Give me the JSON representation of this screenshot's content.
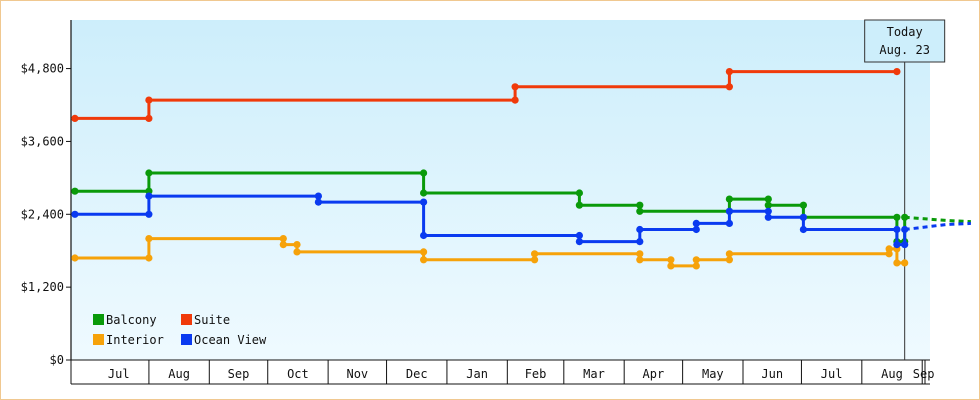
{
  "chart_data": {
    "type": "line",
    "step": true,
    "y_unit_prefix": "$",
    "y_ticks": [
      0,
      1200,
      2400,
      3600,
      4800
    ],
    "y_tick_labels": [
      "$0",
      "$1,200",
      "$2,400",
      "$3,600",
      "$4,800"
    ],
    "ylim": [
      0,
      5600
    ],
    "x_range_days": [
      0,
      441
    ],
    "months": [
      {
        "label": "Jul",
        "start": "2023-07-01"
      },
      {
        "label": "Aug",
        "start": "2023-08-01"
      },
      {
        "label": "Sep",
        "start": "2023-09-01"
      },
      {
        "label": "Oct",
        "start": "2023-10-01"
      },
      {
        "label": "Nov",
        "start": "2023-11-01"
      },
      {
        "label": "Dec",
        "start": "2023-12-01"
      },
      {
        "label": "Jan",
        "start": "2024-01-01"
      },
      {
        "label": "Feb",
        "start": "2024-02-01"
      },
      {
        "label": "Mar",
        "start": "2024-03-01"
      },
      {
        "label": "Apr",
        "start": "2024-04-01"
      },
      {
        "label": "May",
        "start": "2024-05-01"
      },
      {
        "label": "Jun",
        "start": "2024-06-01"
      },
      {
        "label": "Jul",
        "start": "2024-07-01"
      },
      {
        "label": "Aug",
        "start": "2024-08-01"
      },
      {
        "label": "Sep",
        "start": "2024-09-01"
      }
    ],
    "grid": false,
    "legend_position": "bottom-left",
    "today": {
      "line1": "Today",
      "line2": "Aug. 23",
      "date": "2024-08-23"
    },
    "series": [
      {
        "name": "Balcony",
        "color": "#0a9a0a",
        "points": [
          [
            "2023-06-24",
            2780
          ],
          [
            "2023-08-01",
            2780
          ],
          [
            "2023-08-01",
            3080
          ],
          [
            "2023-12-20",
            3080
          ],
          [
            "2023-12-20",
            2750
          ],
          [
            "2024-03-09",
            2750
          ],
          [
            "2024-03-09",
            2550
          ],
          [
            "2024-04-09",
            2550
          ],
          [
            "2024-04-09",
            2450
          ],
          [
            "2024-05-25",
            2450
          ],
          [
            "2024-05-25",
            2650
          ],
          [
            "2024-06-14",
            2650
          ],
          [
            "2024-06-14",
            2550
          ],
          [
            "2024-07-02",
            2550
          ],
          [
            "2024-07-02",
            2350
          ],
          [
            "2024-08-19",
            2350
          ],
          [
            "2024-08-19",
            1950
          ],
          [
            "2024-08-23",
            1950
          ],
          [
            "2024-08-23",
            2350
          ]
        ],
        "forecast": [
          [
            "2024-08-23",
            2350
          ],
          [
            "2024-09-13",
            2300
          ],
          [
            "2024-09-26",
            2280
          ]
        ]
      },
      {
        "name": "Suite",
        "color": "#f03a0a",
        "points": [
          [
            "2023-06-24",
            3980
          ],
          [
            "2023-08-01",
            3980
          ],
          [
            "2023-08-01",
            4280
          ],
          [
            "2024-02-05",
            4280
          ],
          [
            "2024-02-05",
            4500
          ],
          [
            "2024-05-25",
            4500
          ],
          [
            "2024-05-25",
            4750
          ],
          [
            "2024-08-19",
            4750
          ]
        ],
        "forecast": []
      },
      {
        "name": "Interior",
        "color": "#f6a20a",
        "points": [
          [
            "2023-06-24",
            1680
          ],
          [
            "2023-08-01",
            1680
          ],
          [
            "2023-08-01",
            2000
          ],
          [
            "2023-10-09",
            2000
          ],
          [
            "2023-10-09",
            1900
          ],
          [
            "2023-10-16",
            1900
          ],
          [
            "2023-10-16",
            1780
          ],
          [
            "2023-12-20",
            1780
          ],
          [
            "2023-12-20",
            1650
          ],
          [
            "2024-02-15",
            1650
          ],
          [
            "2024-02-15",
            1750
          ],
          [
            "2024-04-09",
            1750
          ],
          [
            "2024-04-09",
            1650
          ],
          [
            "2024-04-25",
            1650
          ],
          [
            "2024-04-25",
            1550
          ],
          [
            "2024-05-08",
            1550
          ],
          [
            "2024-05-08",
            1650
          ],
          [
            "2024-05-25",
            1650
          ],
          [
            "2024-05-25",
            1750
          ],
          [
            "2024-08-15",
            1750
          ],
          [
            "2024-08-15",
            1830
          ],
          [
            "2024-08-19",
            1830
          ],
          [
            "2024-08-19",
            1600
          ],
          [
            "2024-08-23",
            1600
          ]
        ],
        "forecast": []
      },
      {
        "name": "Ocean View",
        "color": "#0a3af0",
        "points": [
          [
            "2023-06-24",
            2400
          ],
          [
            "2023-08-01",
            2400
          ],
          [
            "2023-08-01",
            2700
          ],
          [
            "2023-10-27",
            2700
          ],
          [
            "2023-10-27",
            2600
          ],
          [
            "2023-12-20",
            2600
          ],
          [
            "2023-12-20",
            2050
          ],
          [
            "2024-03-09",
            2050
          ],
          [
            "2024-03-09",
            1950
          ],
          [
            "2024-04-09",
            1950
          ],
          [
            "2024-04-09",
            2150
          ],
          [
            "2024-05-08",
            2150
          ],
          [
            "2024-05-08",
            2250
          ],
          [
            "2024-05-25",
            2250
          ],
          [
            "2024-05-25",
            2450
          ],
          [
            "2024-06-14",
            2450
          ],
          [
            "2024-06-14",
            2350
          ],
          [
            "2024-07-02",
            2350
          ],
          [
            "2024-07-02",
            2150
          ],
          [
            "2024-08-19",
            2150
          ],
          [
            "2024-08-19",
            1900
          ],
          [
            "2024-08-23",
            1900
          ],
          [
            "2024-08-23",
            2150
          ]
        ],
        "forecast": [
          [
            "2024-08-23",
            2150
          ],
          [
            "2024-09-13",
            2230
          ],
          [
            "2024-09-26",
            2250
          ]
        ]
      }
    ]
  }
}
